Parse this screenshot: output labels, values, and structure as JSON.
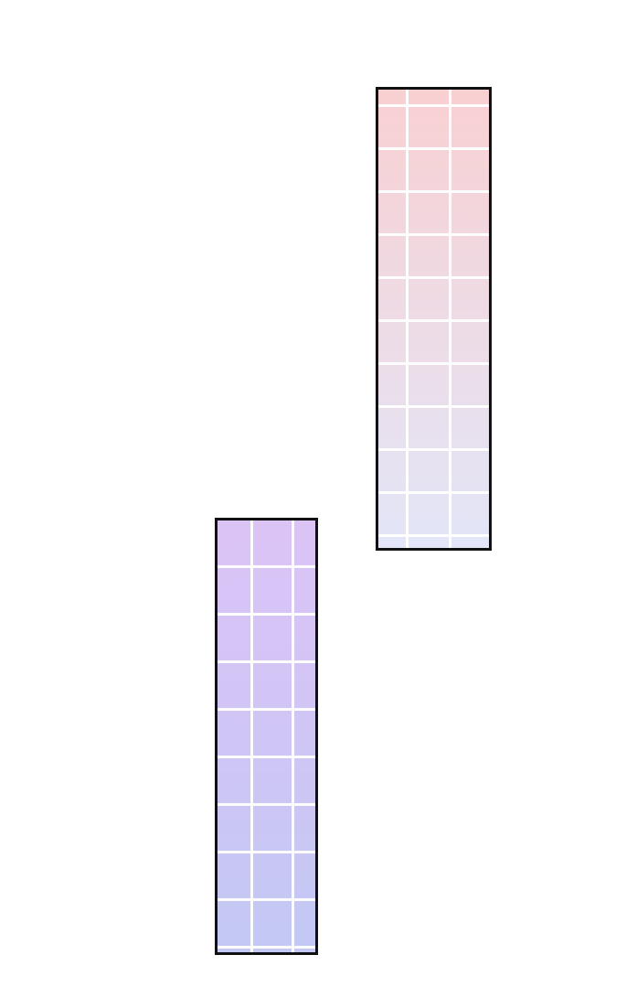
{
  "panels": [
    {
      "name": "pink-grid-panel",
      "color_top": "#f9d0d2",
      "color_bottom": "#e2e6f8",
      "grid_color": "#ffffff",
      "border_color": "#111111"
    },
    {
      "name": "violet-grid-panel",
      "color_top": "#dcc3f6",
      "color_bottom": "#c3c8f4",
      "grid_color": "#ffffff",
      "border_color": "#111111"
    }
  ]
}
